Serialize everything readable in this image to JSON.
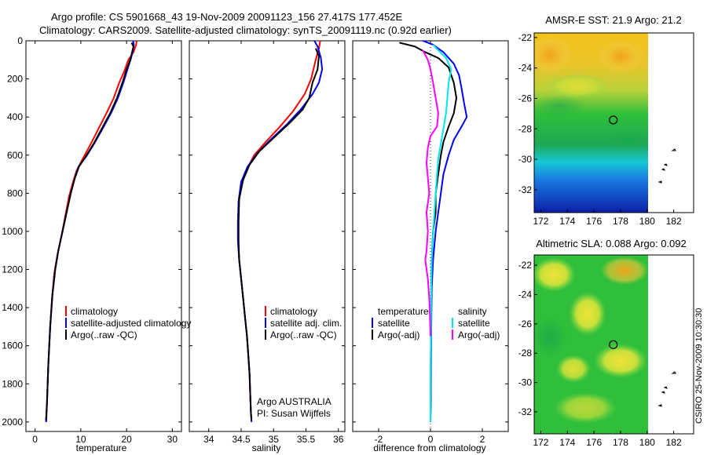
{
  "header": {
    "line1": "Argo profile: CS 5901668_43 19-Nov-2009 20091123_156 27.417S 177.452E",
    "line2": "Climatology: CARS2009. Satellite-adjusted climatology: synTS_20091119.nc (0.92d earlier)"
  },
  "colors": {
    "climatology": "#ff0000",
    "satellite": "#0000ff",
    "argo": "#000000",
    "sal_satellite": "#00e5ee",
    "sal_argo": "#ff00ff"
  },
  "chart_data": [
    {
      "type": "line",
      "id": "temperature",
      "xlabel": "temperature",
      "xlim": [
        -2,
        32
      ],
      "ylim": [
        2050,
        0
      ],
      "xticks": [
        0,
        10,
        20,
        30
      ],
      "yticks": [
        0,
        200,
        400,
        600,
        800,
        1000,
        1200,
        1400,
        1600,
        1800,
        2000
      ],
      "legend": [
        "climatology",
        "satellite-adjusted climatology",
        "Argo(..raw -QC)"
      ],
      "series": [
        {
          "name": "climatology",
          "color": "#ff0000",
          "points": [
            [
              22.2,
              0
            ],
            [
              22.1,
              20
            ],
            [
              21.5,
              60
            ],
            [
              20.4,
              100
            ],
            [
              19.5,
              160
            ],
            [
              18.4,
              220
            ],
            [
              17.2,
              300
            ],
            [
              15.6,
              380
            ],
            [
              13.9,
              460
            ],
            [
              12.2,
              540
            ],
            [
              10.4,
              620
            ],
            [
              9.1,
              680
            ],
            [
              8.3,
              740
            ],
            [
              7.4,
              820
            ],
            [
              6.6,
              920
            ],
            [
              5.8,
              1020
            ],
            [
              4.9,
              1120
            ],
            [
              4.2,
              1220
            ],
            [
              3.7,
              1350
            ],
            [
              3.3,
              1500
            ],
            [
              2.9,
              1700
            ],
            [
              2.6,
              1900
            ],
            [
              2.45,
              2000
            ]
          ]
        },
        {
          "name": "satellite",
          "color": "#0000ff",
          "points": [
            [
              21.4,
              0
            ],
            [
              21.6,
              20
            ],
            [
              21.4,
              50
            ],
            [
              21.0,
              90
            ],
            [
              20.2,
              150
            ],
            [
              19.3,
              220
            ],
            [
              18.1,
              300
            ],
            [
              16.6,
              380
            ],
            [
              14.8,
              460
            ],
            [
              12.9,
              540
            ],
            [
              11.1,
              610
            ],
            [
              9.5,
              660
            ],
            [
              8.7,
              720
            ],
            [
              7.8,
              800
            ],
            [
              6.9,
              900
            ],
            [
              6.0,
              1000
            ],
            [
              5.1,
              1100
            ],
            [
              4.4,
              1200
            ],
            [
              3.8,
              1330
            ],
            [
              3.3,
              1500
            ],
            [
              2.9,
              1700
            ],
            [
              2.6,
              1900
            ],
            [
              2.4,
              2000
            ]
          ]
        },
        {
          "name": "argo",
          "color": "#000000",
          "points": [
            [
              21.1,
              10
            ],
            [
              21.5,
              30
            ],
            [
              21.2,
              60
            ],
            [
              20.8,
              100
            ],
            [
              20.0,
              150
            ],
            [
              19.1,
              220
            ],
            [
              17.9,
              300
            ],
            [
              16.4,
              380
            ],
            [
              14.6,
              460
            ],
            [
              12.8,
              540
            ],
            [
              11.0,
              610
            ],
            [
              9.6,
              660
            ],
            [
              8.7,
              720
            ],
            [
              7.8,
              800
            ],
            [
              6.9,
              900
            ],
            [
              6.0,
              1000
            ],
            [
              5.1,
              1100
            ],
            [
              4.4,
              1200
            ],
            [
              3.8,
              1330
            ],
            [
              3.3,
              1500
            ],
            [
              2.9,
              1700
            ],
            [
              2.6,
              1900
            ],
            [
              2.4,
              1990
            ]
          ]
        }
      ]
    },
    {
      "type": "line",
      "id": "salinity",
      "xlabel": "salinity",
      "xlim": [
        33.7,
        36.1
      ],
      "ylim": [
        2050,
        0
      ],
      "xticks": [
        34,
        34.5,
        35,
        35.5,
        36
      ],
      "legend": [
        "climatology",
        "satellite adj. clim.",
        "Argo(..raw -QC)"
      ],
      "footer": [
        "Argo AUSTRALIA",
        "PI: Susan Wijffels"
      ],
      "series": [
        {
          "name": "climatology",
          "color": "#ff0000",
          "points": [
            [
              35.72,
              0
            ],
            [
              35.7,
              40
            ],
            [
              35.65,
              100
            ],
            [
              35.58,
              200
            ],
            [
              35.48,
              280
            ],
            [
              35.3,
              370
            ],
            [
              35.1,
              450
            ],
            [
              34.88,
              530
            ],
            [
              34.7,
              600
            ],
            [
              34.58,
              680
            ],
            [
              34.5,
              760
            ],
            [
              34.46,
              850
            ],
            [
              34.45,
              950
            ],
            [
              34.45,
              1050
            ],
            [
              34.47,
              1150
            ],
            [
              34.5,
              1250
            ],
            [
              34.53,
              1350
            ],
            [
              34.56,
              1450
            ],
            [
              34.59,
              1550
            ],
            [
              34.61,
              1650
            ],
            [
              34.63,
              1750
            ],
            [
              34.64,
              1850
            ],
            [
              34.65,
              1950
            ]
          ]
        },
        {
          "name": "satellite",
          "color": "#0000ff",
          "points": [
            [
              35.63,
              0
            ],
            [
              35.68,
              30
            ],
            [
              35.73,
              90
            ],
            [
              35.75,
              150
            ],
            [
              35.7,
              220
            ],
            [
              35.6,
              280
            ],
            [
              35.42,
              360
            ],
            [
              35.2,
              440
            ],
            [
              34.95,
              520
            ],
            [
              34.75,
              590
            ],
            [
              34.6,
              660
            ],
            [
              34.5,
              740
            ],
            [
              34.46,
              840
            ],
            [
              34.45,
              950
            ],
            [
              34.45,
              1050
            ],
            [
              34.47,
              1150
            ],
            [
              34.5,
              1250
            ],
            [
              34.53,
              1350
            ],
            [
              34.56,
              1450
            ],
            [
              34.59,
              1550
            ],
            [
              34.61,
              1650
            ],
            [
              34.63,
              1750
            ],
            [
              34.64,
              1850
            ],
            [
              34.65,
              1950
            ],
            [
              34.66,
              2000
            ]
          ]
        },
        {
          "name": "argo",
          "color": "#000000",
          "points": [
            [
              35.65,
              40
            ],
            [
              35.7,
              80
            ],
            [
              35.68,
              150
            ],
            [
              35.6,
              220
            ],
            [
              35.55,
              300
            ],
            [
              35.45,
              360
            ],
            [
              35.25,
              430
            ],
            [
              35.0,
              510
            ],
            [
              34.78,
              580
            ],
            [
              34.63,
              650
            ],
            [
              34.53,
              730
            ],
            [
              34.47,
              830
            ],
            [
              34.46,
              950
            ],
            [
              34.46,
              1050
            ],
            [
              34.47,
              1150
            ],
            [
              34.5,
              1250
            ],
            [
              34.53,
              1350
            ],
            [
              34.56,
              1450
            ],
            [
              34.59,
              1550
            ],
            [
              34.61,
              1650
            ],
            [
              34.63,
              1750
            ],
            [
              34.64,
              1850
            ],
            [
              34.65,
              1950
            ],
            [
              34.66,
              1990
            ]
          ]
        }
      ]
    },
    {
      "type": "line",
      "id": "difference",
      "xlabel": "difference from climatology",
      "xlim": [
        -3,
        3
      ],
      "ylim": [
        2050,
        0
      ],
      "xticks": [
        -2,
        0,
        2
      ],
      "legend_left_title": "temperature",
      "legend_right_title": "salinity",
      "legend_left": [
        "satellite",
        "Argo(-adj)"
      ],
      "legend_right": [
        "satellite",
        "Argo(-adj)"
      ],
      "series": [
        {
          "name": "temperature satellite",
          "color": "#0000ff",
          "points": [
            [
              -0.3,
              0
            ],
            [
              0.1,
              20
            ],
            [
              0.5,
              60
            ],
            [
              0.9,
              120
            ],
            [
              1.1,
              180
            ],
            [
              1.2,
              250
            ],
            [
              1.3,
              330
            ],
            [
              1.4,
              400
            ],
            [
              1.2,
              450
            ],
            [
              0.9,
              520
            ],
            [
              0.7,
              600
            ],
            [
              0.5,
              700
            ],
            [
              0.4,
              800
            ],
            [
              0.3,
              900
            ],
            [
              0.2,
              1000
            ],
            [
              0.1,
              1150
            ],
            [
              0.05,
              1300
            ],
            [
              0.03,
              1500
            ],
            [
              0.02,
              1700
            ],
            [
              0.01,
              1900
            ],
            [
              0.0,
              2000
            ]
          ]
        },
        {
          "name": "temperature Argo",
          "color": "#000000",
          "points": [
            [
              -1.2,
              10
            ],
            [
              -0.6,
              30
            ],
            [
              -0.2,
              60
            ],
            [
              0.3,
              90
            ],
            [
              0.7,
              140
            ],
            [
              0.9,
              220
            ],
            [
              1.0,
              300
            ],
            [
              0.9,
              380
            ],
            [
              0.7,
              450
            ],
            [
              0.5,
              530
            ],
            [
              0.4,
              600
            ],
            [
              0.3,
              700
            ],
            [
              0.2,
              800
            ],
            [
              0.2,
              900
            ],
            [
              0.1,
              1000
            ],
            [
              0.05,
              1150
            ],
            [
              0.03,
              1300
            ],
            [
              0.02,
              1500
            ],
            [
              0.01,
              1700
            ],
            [
              0.01,
              1900
            ],
            [
              0.0,
              1990
            ]
          ]
        },
        {
          "name": "salinity satellite",
          "color": "#00e5ee",
          "points": [
            [
              0.1,
              20
            ],
            [
              0.3,
              50
            ],
            [
              0.6,
              90
            ],
            [
              0.8,
              150
            ],
            [
              0.7,
              220
            ],
            [
              0.65,
              300
            ],
            [
              0.6,
              380
            ],
            [
              0.5,
              460
            ],
            [
              0.4,
              540
            ],
            [
              0.3,
              620
            ],
            [
              0.25,
              700
            ],
            [
              0.2,
              800
            ],
            [
              0.15,
              900
            ],
            [
              0.1,
              1000
            ],
            [
              0.05,
              1150
            ],
            [
              0.03,
              1300
            ],
            [
              0.02,
              1500
            ],
            [
              0.01,
              1700
            ],
            [
              0.0,
              1900
            ],
            [
              0.0,
              2000
            ]
          ]
        },
        {
          "name": "salinity Argo",
          "color": "#ff00ff",
          "points": [
            [
              -0.3,
              50
            ],
            [
              -0.1,
              100
            ],
            [
              0.0,
              150
            ],
            [
              0.1,
              220
            ],
            [
              0.2,
              300
            ],
            [
              0.3,
              380
            ],
            [
              0.25,
              450
            ],
            [
              0.0,
              500
            ],
            [
              -0.1,
              560
            ],
            [
              -0.15,
              640
            ],
            [
              -0.1,
              720
            ],
            [
              -0.05,
              800
            ],
            [
              -0.15,
              900
            ],
            [
              -0.1,
              1000
            ],
            [
              -0.15,
              1100
            ],
            [
              -0.2,
              1150
            ],
            [
              -0.1,
              1250
            ],
            [
              -0.05,
              1350
            ],
            [
              -0.02,
              1450
            ],
            [
              0.0,
              1550
            ]
          ]
        }
      ]
    },
    {
      "type": "heatmap",
      "id": "sst_map",
      "title": "AMSR-E SST: 21.9 Argo: 21.2",
      "xlim": [
        171.5,
        183.5
      ],
      "ylim": [
        -33.5,
        -21.7
      ],
      "xticks": [
        172,
        174,
        176,
        178,
        180,
        182
      ],
      "yticks": [
        -22,
        -24,
        -26,
        -28,
        -30,
        -32
      ],
      "argo_position": [
        177.452,
        -27.417
      ]
    },
    {
      "type": "heatmap",
      "id": "sla_map",
      "title": "Altimetric SLA: 0.088 Argo: 0.092",
      "xlim": [
        171.5,
        183.5
      ],
      "ylim": [
        -33.5,
        -21.3
      ],
      "xticks": [
        172,
        174,
        176,
        178,
        180,
        182
      ],
      "yticks": [
        -22,
        -24,
        -26,
        -28,
        -30,
        -32
      ],
      "argo_position": [
        177.452,
        -27.417
      ]
    }
  ],
  "footer": {
    "credit": "CSIRO 25-Nov-2009 10:30:30"
  }
}
